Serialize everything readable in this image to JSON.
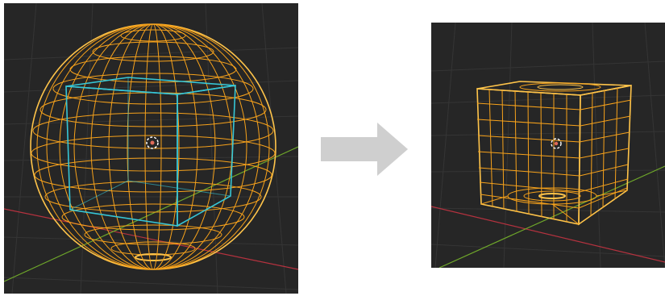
{
  "scene": {
    "description_none": "",
    "colors": {
      "viewport_bg": "#262626",
      "grid_line": "#3a3a3a",
      "x_axis": "#b5323f",
      "y_axis": "#6fa82a",
      "wire_selected": "#f7a21b",
      "wire_active": "#ffc44a",
      "cage": "#36c6d6",
      "arrow": "#cfcfcf",
      "origin_outer": "#ffffff",
      "origin_inner": "#e06b5a"
    }
  },
  "before_view": {
    "object": "sphere-with-cube-cage"
  },
  "after_view": {
    "object": "sphere-shrinkwrapped-to-cube"
  },
  "transition": {
    "icon": "arrow-right-icon"
  }
}
